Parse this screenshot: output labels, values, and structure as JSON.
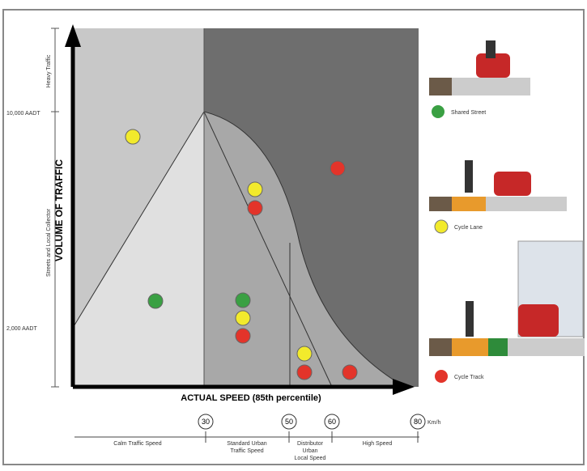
{
  "diagram": {
    "y_axis": {
      "title": "VOLUME OF TRAFFIC",
      "bands": [
        "Heavy Traffic",
        "Streets and Local Collector"
      ],
      "levels": [
        "10,000 AADT",
        "2,000 AADT"
      ]
    },
    "x_axis": {
      "title": "ACTUAL SPEED (85th percentile)",
      "speeds": [
        "30",
        "50",
        "60",
        "80"
      ],
      "unit": "Km/h",
      "ranges": [
        [
          "Calm Traffic Speed"
        ],
        [
          "Standard Urban",
          "Traffic Speed"
        ],
        [
          "Distributor",
          "Urban",
          "Local Speed"
        ],
        [
          "High Speed"
        ]
      ]
    },
    "legend": [
      "Shared Street",
      "Cycle Lane",
      "Cycle Track"
    ]
  }
}
